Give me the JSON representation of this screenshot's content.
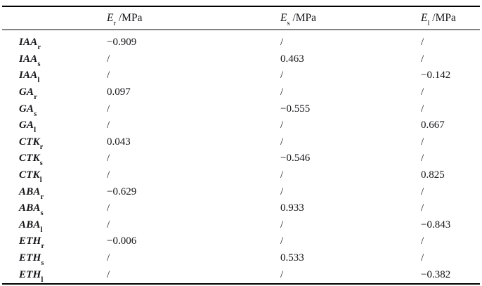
{
  "table": {
    "columns": [
      {
        "symbol": "E",
        "sub": "r",
        "unit": " /MPa"
      },
      {
        "symbol": "E",
        "sub": "s",
        "unit": " /MPa"
      },
      {
        "symbol": "E",
        "sub": "l",
        "unit": " /MPa"
      }
    ],
    "rows": [
      {
        "label": "IAA",
        "sub": "r",
        "values": [
          "−0.909",
          "/",
          "/"
        ]
      },
      {
        "label": "IAA",
        "sub": "s",
        "values": [
          "/",
          "0.463",
          "/"
        ]
      },
      {
        "label": "IAA",
        "sub": "l",
        "values": [
          "/",
          "/",
          "−0.142"
        ]
      },
      {
        "label": "GA",
        "sub": "r",
        "values": [
          "0.097",
          "/",
          "/"
        ]
      },
      {
        "label": "GA",
        "sub": "s",
        "values": [
          "/",
          "−0.555",
          "/"
        ]
      },
      {
        "label": "GA",
        "sub": "l",
        "values": [
          "/",
          "/",
          "0.667"
        ]
      },
      {
        "label": "CTK",
        "sub": "r",
        "values": [
          "0.043",
          "/",
          "/"
        ]
      },
      {
        "label": "CTK",
        "sub": "s",
        "values": [
          "/",
          "−0.546",
          "/"
        ]
      },
      {
        "label": "CTK",
        "sub": "l",
        "values": [
          "/",
          "/",
          "0.825"
        ]
      },
      {
        "label": "ABA",
        "sub": "r",
        "values": [
          "−0.629",
          "/",
          "/"
        ]
      },
      {
        "label": "ABA",
        "sub": "s",
        "values": [
          "/",
          "0.933",
          "/"
        ]
      },
      {
        "label": "ABA",
        "sub": "l",
        "values": [
          "/",
          "/",
          "−0.843"
        ]
      },
      {
        "label": "ETH",
        "sub": "r",
        "values": [
          "−0.006",
          "/",
          "/"
        ]
      },
      {
        "label": "ETH",
        "sub": "s",
        "values": [
          "/",
          "0.533",
          "/"
        ]
      },
      {
        "label": "ETH",
        "sub": "l",
        "values": [
          "/",
          "/",
          "−0.382"
        ]
      }
    ],
    "colors": {
      "text": "#141418",
      "rule": "#000000",
      "background": "#ffffff"
    }
  },
  "chart_data": {
    "type": "table",
    "title": "",
    "column_headers": [
      "",
      "E_r /MPa",
      "E_s /MPa",
      "E_l /MPa"
    ],
    "row_headers": [
      "IAA_r",
      "IAA_s",
      "IAA_l",
      "GA_r",
      "GA_s",
      "GA_l",
      "CTK_r",
      "CTK_s",
      "CTK_l",
      "ABA_r",
      "ABA_s",
      "ABA_l",
      "ETH_r",
      "ETH_s",
      "ETH_l"
    ],
    "cells": [
      [
        "-0.909",
        "/",
        "/"
      ],
      [
        "/",
        "0.463",
        "/"
      ],
      [
        "/",
        "/",
        "-0.142"
      ],
      [
        "0.097",
        "/",
        "/"
      ],
      [
        "/",
        "-0.555",
        "/"
      ],
      [
        "/",
        "/",
        "0.667"
      ],
      [
        "0.043",
        "/",
        "/"
      ],
      [
        "/",
        "-0.546",
        "/"
      ],
      [
        "/",
        "/",
        "0.825"
      ],
      [
        "-0.629",
        "/",
        "/"
      ],
      [
        "/",
        "0.933",
        "/"
      ],
      [
        "/",
        "/",
        "-0.843"
      ],
      [
        "-0.006",
        "/",
        "/"
      ],
      [
        "/",
        "0.533",
        "/"
      ],
      [
        "/",
        "/",
        "-0.382"
      ]
    ]
  }
}
